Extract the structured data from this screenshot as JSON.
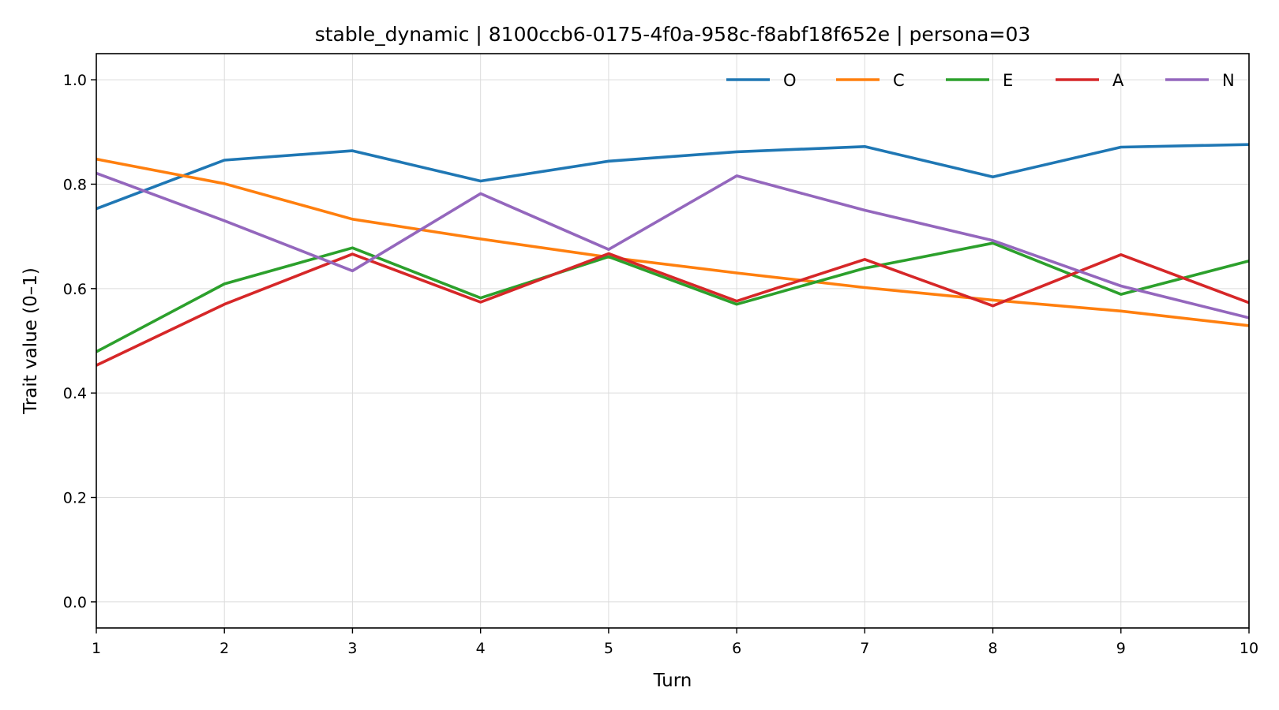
{
  "chart_data": {
    "type": "line",
    "title": "stable_dynamic | 8100ccb6-0175-4f0a-958c-f8abf18f652e | persona=03",
    "xlabel": "Turn",
    "ylabel": "Trait value (0–1)",
    "x": [
      1,
      2,
      3,
      4,
      5,
      6,
      7,
      8,
      9,
      10
    ],
    "xlim": [
      1,
      10
    ],
    "ylim": [
      -0.05,
      1.05
    ],
    "xticks": [
      1,
      2,
      3,
      4,
      5,
      6,
      7,
      8,
      9,
      10
    ],
    "yticks": [
      0.0,
      0.2,
      0.4,
      0.6,
      0.8,
      1.0
    ],
    "grid": true,
    "legend_position": "top-right",
    "series": [
      {
        "name": "O",
        "color": "#1f77b4",
        "values": [
          0.753,
          0.846,
          0.864,
          0.806,
          0.844,
          0.862,
          0.872,
          0.814,
          0.871,
          0.876
        ]
      },
      {
        "name": "C",
        "color": "#ff7f0e",
        "values": [
          0.848,
          0.801,
          0.733,
          0.695,
          0.66,
          0.63,
          0.602,
          0.578,
          0.557,
          0.529
        ]
      },
      {
        "name": "E",
        "color": "#2ca02c",
        "values": [
          0.479,
          0.609,
          0.678,
          0.582,
          0.661,
          0.57,
          0.639,
          0.687,
          0.589,
          0.653
        ]
      },
      {
        "name": "A",
        "color": "#d62728",
        "values": [
          0.453,
          0.57,
          0.666,
          0.574,
          0.667,
          0.576,
          0.656,
          0.567,
          0.665,
          0.573
        ]
      },
      {
        "name": "N",
        "color": "#9467bd",
        "values": [
          0.821,
          0.73,
          0.634,
          0.782,
          0.675,
          0.816,
          0.75,
          0.692,
          0.605,
          0.544
        ]
      }
    ]
  }
}
